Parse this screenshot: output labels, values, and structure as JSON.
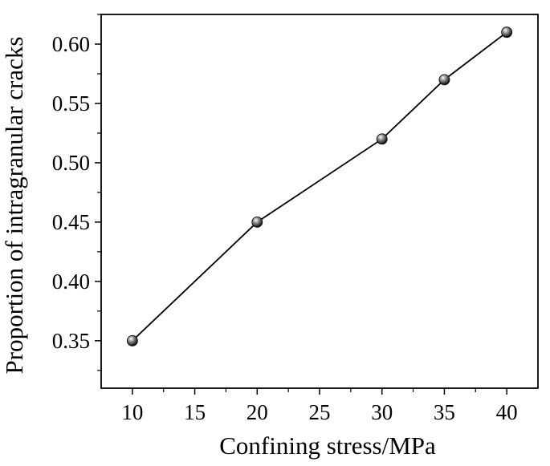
{
  "chart_data": {
    "type": "line",
    "title": "",
    "xlabel": "Confining stress/MPa",
    "ylabel": "Proportion of intragranular cracks",
    "x": [
      10,
      20,
      30,
      35,
      40
    ],
    "series": [
      {
        "values": [
          0.35,
          0.45,
          0.52,
          0.57,
          0.61
        ]
      }
    ],
    "xlim": [
      7.5,
      42.5
    ],
    "ylim": [
      0.31,
      0.625
    ],
    "xticks": [
      10,
      15,
      20,
      25,
      30,
      35,
      40
    ],
    "xtick_labels": [
      "10",
      "15",
      "20",
      "25",
      "30",
      "35",
      "40"
    ],
    "yticks": [
      0.35,
      0.4,
      0.45,
      0.5,
      0.55,
      0.6
    ],
    "ytick_labels": [
      "0.35",
      "0.40",
      "0.45",
      "0.50",
      "0.55",
      "0.60"
    ],
    "grid": false,
    "legend": "none",
    "marker": "sphere",
    "line_color": "#000000"
  }
}
